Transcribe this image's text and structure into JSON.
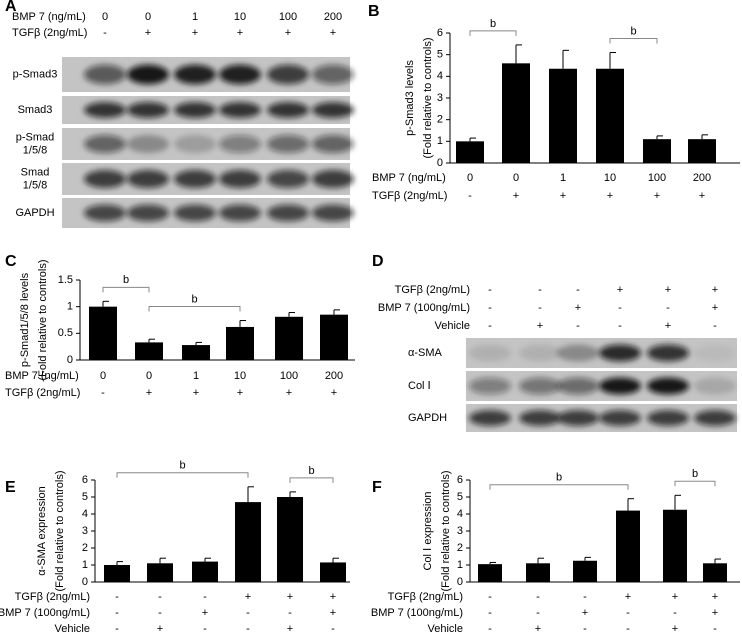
{
  "chart_data": [
    {
      "type": "bar",
      "panel": "B",
      "ylabel": [
        "p-Smad3 levels",
        "(Fold relative to controls)"
      ],
      "color": "#000000",
      "values": [
        1,
        4.6,
        4.35,
        4.35,
        1.1,
        1.1
      ],
      "errors": [
        0.15,
        0.85,
        0.85,
        0.75,
        0.15,
        0.2
      ],
      "ylim": [
        0,
        6
      ],
      "yticks": [
        0,
        1,
        2,
        3,
        4,
        5,
        6
      ],
      "conditions": [
        {
          "label": "BMP 7 (ng/mL)",
          "values": [
            "0",
            "0",
            "1",
            "10",
            "100",
            "200"
          ]
        },
        {
          "label": "TGFβ (2ng/mL)",
          "values": [
            "-",
            "+",
            "+",
            "+",
            "+",
            "+"
          ]
        }
      ],
      "annotations": [
        {
          "label": "b",
          "from": 0,
          "to": 1
        },
        {
          "label": "b",
          "from": 3,
          "to": 4
        }
      ]
    },
    {
      "type": "bar",
      "panel": "C",
      "ylabel": [
        "p-Smad1/5/8 levels",
        "(Fold relative to controls)"
      ],
      "color": "#000000",
      "values": [
        1,
        0.33,
        0.28,
        0.62,
        0.81,
        0.85
      ],
      "errors": [
        0.1,
        0.06,
        0.05,
        0.12,
        0.08,
        0.09
      ],
      "ylim": [
        0,
        1.5
      ],
      "yticks": [
        0,
        0.5,
        1,
        1.5
      ],
      "conditions": [
        {
          "label": "BMP 7 (ng/mL)",
          "values": [
            "0",
            "0",
            "1",
            "10",
            "100",
            "200"
          ]
        },
        {
          "label": "TGFβ (2ng/mL)",
          "values": [
            "-",
            "+",
            "+",
            "+",
            "+",
            "+"
          ]
        }
      ],
      "annotations": [
        {
          "label": "b",
          "from": 0,
          "to": 1
        },
        {
          "label": "b",
          "from": 1,
          "to": 3
        }
      ]
    },
    {
      "type": "bar",
      "panel": "E",
      "ylabel": [
        "α-SMA expression",
        "(Fold relative to controls)"
      ],
      "color": "#000000",
      "values": [
        1,
        1.1,
        1.2,
        4.7,
        5.0,
        1.15
      ],
      "errors": [
        0.2,
        0.3,
        0.2,
        0.9,
        0.3,
        0.25
      ],
      "ylim": [
        0,
        6
      ],
      "yticks": [
        0,
        1,
        2,
        3,
        4,
        5,
        6
      ],
      "conditions": [
        {
          "label": "TGFβ (2ng/mL)",
          "values": [
            "-",
            "-",
            "-",
            "+",
            "+",
            "+"
          ]
        },
        {
          "label": "BMP 7 (100ng/mL)",
          "values": [
            "-",
            "-",
            "+",
            "-",
            "-",
            "+"
          ]
        },
        {
          "label": "Vehicle",
          "values": [
            "-",
            "+",
            "-",
            "-",
            "+",
            "-"
          ]
        }
      ],
      "annotations": [
        {
          "label": "b",
          "from": 0,
          "to": 3
        },
        {
          "label": "b",
          "from": 4,
          "to": 5
        }
      ]
    },
    {
      "type": "bar",
      "panel": "F",
      "ylabel": [
        "Col Ⅰ expression",
        "(Fold relative to controls)"
      ],
      "color": "#000000",
      "values": [
        1.05,
        1.1,
        1.25,
        4.2,
        4.25,
        1.1
      ],
      "errors": [
        0.1,
        0.3,
        0.2,
        0.7,
        0.85,
        0.25
      ],
      "ylim": [
        0,
        6
      ],
      "yticks": [
        0,
        1,
        2,
        3,
        4,
        5,
        6
      ],
      "conditions": [
        {
          "label": "TGFβ (2ng/mL)",
          "values": [
            "-",
            "-",
            "-",
            "+",
            "+",
            "+"
          ]
        },
        {
          "label": "BMP 7 (100ng/mL)",
          "values": [
            "-",
            "-",
            "+",
            "-",
            "-",
            "+"
          ]
        },
        {
          "label": "Vehicle",
          "values": [
            "-",
            "+",
            "-",
            "-",
            "+",
            "-"
          ]
        }
      ],
      "annotations": [
        {
          "label": "b",
          "from": 0,
          "to": 3
        },
        {
          "label": "b",
          "from": 4,
          "to": 5
        }
      ]
    }
  ],
  "blots": [
    {
      "panel": "A",
      "conditions": [
        {
          "label": "BMP 7 (ng/mL)",
          "values": [
            "0",
            "0",
            "1",
            "10",
            "100",
            "200"
          ]
        },
        {
          "label": "TGFβ (2ng/mL)",
          "values": [
            "-",
            "+",
            "+",
            "+",
            "+",
            "+"
          ]
        }
      ],
      "bands": [
        [
          "p-Smad3"
        ],
        [
          "Smad3"
        ],
        [
          "p-Smad",
          "1/5/8"
        ],
        [
          "Smad",
          "1/5/8"
        ],
        [
          "GAPDH"
        ]
      ]
    },
    {
      "panel": "D",
      "conditions": [
        {
          "label": "TGFβ (2ng/mL)",
          "values": [
            "-",
            "-",
            "-",
            "+",
            "+",
            "+"
          ]
        },
        {
          "label": "BMP 7 (100ng/mL)",
          "values": [
            "-",
            "-",
            "+",
            "-",
            "-",
            "+"
          ]
        },
        {
          "label": "Vehicle",
          "values": [
            "-",
            "+",
            "-",
            "-",
            "+",
            "-"
          ]
        }
      ],
      "bands": [
        [
          "α-SMA"
        ],
        [
          "Col Ⅰ"
        ],
        [
          "GAPDH"
        ]
      ]
    }
  ]
}
